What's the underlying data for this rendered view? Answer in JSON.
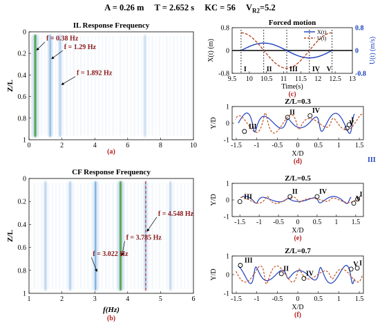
{
  "header": {
    "A": "A = 0.26 m",
    "T": "T = 2.652 s",
    "KC": "KC = 56",
    "Vr": "V",
    "Vr_sub": "R2",
    "Vr_val": "=5.2"
  },
  "chart_data": [
    {
      "id": "a",
      "type": "heatmap",
      "title": "IL Response Frequency",
      "caption": "(a)",
      "ylabel": "Z/L",
      "xlim": [
        0,
        10
      ],
      "ylim": [
        0,
        1
      ],
      "y_inverted": true,
      "xticks": [
        0,
        2,
        4,
        6,
        8,
        10
      ],
      "yticks": [
        0,
        0.2,
        0.4,
        0.6,
        0.8,
        1
      ],
      "bands": [
        {
          "f": 0.38,
          "strength": 1.0,
          "color": "#3d9a2a"
        },
        {
          "f": 1.29,
          "strength": 0.55,
          "color": "#6aa0d8"
        },
        {
          "f": 1.892,
          "strength": 0.3,
          "color": "#9cc0e4"
        },
        {
          "f": 7.05,
          "strength": 0.12,
          "color": "#c8dcef"
        }
      ],
      "annotations": [
        {
          "text": "f = 0.38 Hz",
          "x": 0.38,
          "y": 0.12
        },
        {
          "text": "f = 1.29 Hz",
          "x": 1.29,
          "y": 0.2
        },
        {
          "text": "f = 1.892 Hz",
          "x": 1.892,
          "y": 0.44
        }
      ]
    },
    {
      "id": "b",
      "type": "heatmap",
      "title": "CF Response Frequency",
      "caption": "(b)",
      "xlabel": "f(Hz)",
      "ylabel": "Z/L",
      "xlim": [
        1,
        6
      ],
      "ylim": [
        0,
        1
      ],
      "y_inverted": true,
      "xticks": [
        1,
        2,
        3,
        4,
        5,
        6
      ],
      "yticks": [
        0,
        0.2,
        0.4,
        0.6,
        0.8,
        1
      ],
      "bands": [
        {
          "f": 1.5,
          "strength": 0.25,
          "color": "#a9c9ea"
        },
        {
          "f": 2.25,
          "strength": 0.35,
          "color": "#93bbe5"
        },
        {
          "f": 3.022,
          "strength": 0.6,
          "color": "#4f9ad6"
        },
        {
          "f": 3.785,
          "strength": 1.0,
          "color": "#3d9a2a"
        },
        {
          "f": 4.548,
          "strength": 0.4,
          "color": "#7fb0df"
        },
        {
          "f": 5.3,
          "strength": 0.2,
          "color": "#b3cfe9"
        }
      ],
      "dashed_line": {
        "x": 4.548,
        "color": "#b54040"
      },
      "annotations": [
        {
          "text": "f = 4.548 Hz",
          "x": 4.548,
          "y": 0.36
        },
        {
          "text": "f = 3.785 Hz",
          "x": 3.785,
          "y": 0.57
        },
        {
          "text": "f = 3.022 Hz",
          "x": 3.022,
          "y": 0.71
        }
      ]
    },
    {
      "id": "c",
      "type": "line",
      "title": "Forced motion",
      "caption": "(c)",
      "xlabel": "Time(s)",
      "ylabel": "X(t) (m)",
      "y2label": "U(t) (m/s)",
      "xlim": [
        9.5,
        13
      ],
      "ylim": [
        -0.8,
        0.8
      ],
      "y2lim": [
        -0.8,
        0.8
      ],
      "xticks": [
        9.5,
        10,
        10.5,
        11,
        11.5,
        12,
        12.5,
        13
      ],
      "yticks": [
        -0.8,
        0,
        0.8
      ],
      "y2ticks": [
        -0.8,
        0,
        0.8
      ],
      "amplitude_x": 0.26,
      "amplitude_u": 0.62,
      "period": 2.652,
      "t_start": 9.76,
      "series": [
        {
          "name": "X(t)",
          "axis": "left",
          "color": "#1a3fbf",
          "dash": "solid"
        },
        {
          "name": "U(t)",
          "axis": "right",
          "color": "#b54a26",
          "dash": "dashed"
        }
      ],
      "phase_marks": [
        9.76,
        10.42,
        11.09,
        11.75,
        12.41
      ],
      "phase_labels": [
        "I",
        "II",
        "III",
        "IV",
        "V"
      ]
    },
    {
      "id": "d",
      "type": "line",
      "title": "Z/L=0.3",
      "caption": "(d)",
      "xlabel": "X/D",
      "ylabel": "Y/D",
      "xlim": [
        -1.6,
        1.6
      ],
      "ylim": [
        -1,
        1
      ],
      "xticks": [
        -1.5,
        -1,
        -0.5,
        0,
        0.5,
        1,
        1.5
      ],
      "yticks": [
        -1,
        0,
        1
      ],
      "series": [
        {
          "color": "#1f3fc0"
        },
        {
          "color": "#c05020"
        }
      ],
      "markers": [
        {
          "label": "I",
          "x": 1.25,
          "y": -0.1
        },
        {
          "label": "II",
          "x": -0.25,
          "y": 0.35
        },
        {
          "label": "III",
          "x": -1.3,
          "y": -0.5
        },
        {
          "label": "IV",
          "x": 0.3,
          "y": 0.45
        },
        {
          "label": "V",
          "x": 1.2,
          "y": -0.3
        }
      ],
      "outside_label": "III"
    },
    {
      "id": "e",
      "type": "line",
      "title": "Z/L=0.5",
      "caption": "(e)",
      "xlabel": "X/D",
      "ylabel": "Y/D",
      "xlim": [
        -1.7,
        1.7
      ],
      "ylim": [
        -1,
        1
      ],
      "xticks": [
        -1.5,
        -1,
        -0.5,
        0,
        0.5,
        1,
        1.5
      ],
      "yticks": [
        -1,
        0,
        1
      ],
      "series": [
        {
          "color": "#1f3fc0"
        },
        {
          "color": "#c05020"
        }
      ],
      "markers": [
        {
          "label": "I",
          "x": 1.55,
          "y": 0.05
        },
        {
          "label": "II",
          "x": -0.2,
          "y": 0.2
        },
        {
          "label": "III",
          "x": -1.5,
          "y": -0.1
        },
        {
          "label": "IV",
          "x": 0.5,
          "y": 0.2
        },
        {
          "label": "V",
          "x": 1.45,
          "y": -0.2
        }
      ]
    },
    {
      "id": "f",
      "type": "line",
      "title": "Z/L=0.7",
      "caption": "(f)",
      "xlabel": "X/D",
      "ylabel": "Y/D",
      "xlim": [
        -1.6,
        1.6
      ],
      "ylim": [
        -1,
        1
      ],
      "xticks": [
        -1.5,
        -1,
        -0.5,
        0,
        0.5,
        1,
        1.5
      ],
      "yticks": [
        -1,
        0,
        1
      ],
      "series": [
        {
          "color": "#1f3fc0"
        },
        {
          "color": "#c05020"
        }
      ],
      "markers": [
        {
          "label": "I",
          "x": 1.45,
          "y": 0.35
        },
        {
          "label": "II",
          "x": -0.4,
          "y": 0.05
        },
        {
          "label": "III",
          "x": -1.4,
          "y": 0.5
        },
        {
          "label": "IV",
          "x": 0.15,
          "y": -0.2
        },
        {
          "label": "V",
          "x": 1.3,
          "y": 0.3
        }
      ]
    }
  ]
}
